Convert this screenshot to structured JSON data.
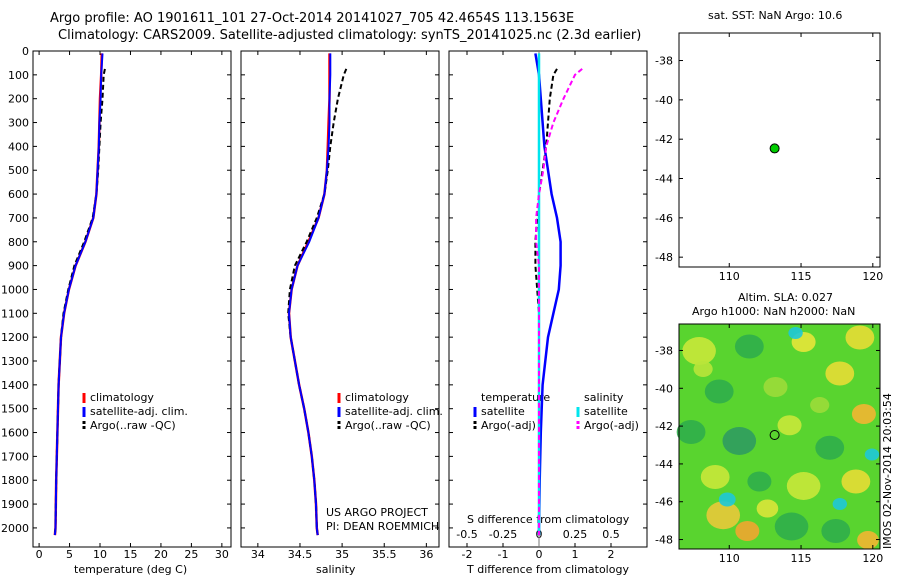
{
  "title": {
    "line1": "Argo profile: AO 1901611_101 27-Oct-2014 20141027_705 42.4654S 113.1563E",
    "line2": "Climatology: CARS2009. Satellite-adjusted climatology: synTS_20141025.nc (2.3d earlier)"
  },
  "colors": {
    "climatology": "#ff0000",
    "satellite": "#0000ff",
    "argo": "#000000",
    "satellite_s": "#00e5ee",
    "argo_s": "#ff00ff",
    "marker": "#00cc00"
  },
  "chart_data": [
    {
      "id": "temperature",
      "type": "line",
      "xlabel": "temperature (deg C)",
      "ylabel": "",
      "xlim": [
        -1,
        31.5
      ],
      "ylim": [
        2080,
        0
      ],
      "xticks": [
        0,
        5,
        10,
        15,
        20,
        25,
        30
      ],
      "yticks": [
        0,
        100,
        200,
        300,
        400,
        500,
        600,
        700,
        800,
        900,
        1000,
        1100,
        1200,
        1300,
        1400,
        1500,
        1600,
        1700,
        1800,
        1900,
        2000
      ],
      "legend": [
        "climatology",
        "satellite-adj. clim.",
        "Argo(..raw -QC)"
      ],
      "series": [
        {
          "name": "climatology",
          "depth": [
            10,
            100,
            200,
            300,
            400,
            500,
            600,
            700,
            800,
            900,
            1000,
            1100,
            1200,
            1300,
            1400,
            1600,
            1800,
            2000,
            2030
          ],
          "values": [
            10.3,
            10.2,
            10.0,
            9.9,
            9.8,
            9.6,
            9.4,
            8.9,
            7.6,
            6.0,
            4.9,
            4.1,
            3.6,
            3.4,
            3.2,
            3.0,
            2.8,
            2.7,
            2.6
          ]
        },
        {
          "name": "satellite-adj. clim.",
          "depth": [
            10,
            100,
            200,
            300,
            400,
            500,
            600,
            700,
            800,
            900,
            1000,
            1100,
            1200,
            1300,
            1400,
            1600,
            1800,
            2000,
            2030
          ],
          "values": [
            10.4,
            10.2,
            10.1,
            9.9,
            9.8,
            9.6,
            9.4,
            8.9,
            7.6,
            6.0,
            4.9,
            4.1,
            3.6,
            3.4,
            3.2,
            3.0,
            2.8,
            2.7,
            2.6
          ]
        },
        {
          "name": "Argo(..raw -QC)",
          "depth": [
            75,
            100,
            200,
            300,
            400,
            500,
            600,
            700,
            800,
            900,
            1000,
            1100,
            1200,
            1300,
            1400,
            1600,
            1800,
            2000,
            2030
          ],
          "values": [
            10.8,
            10.6,
            10.4,
            10.1,
            9.9,
            9.7,
            9.4,
            8.8,
            7.4,
            5.8,
            4.8,
            4.0,
            3.6,
            3.4,
            3.2,
            3.0,
            2.8,
            2.7,
            2.6
          ]
        }
      ]
    },
    {
      "id": "salinity",
      "type": "line",
      "xlabel": "salinity",
      "ylabel": "",
      "xlim": [
        33.8,
        36.15
      ],
      "ylim": [
        2080,
        0
      ],
      "xticks": [
        34,
        34.5,
        35,
        35.5,
        36
      ],
      "legend": [
        "climatology",
        "satellite-adj. clim.",
        "Argo(..raw -QC)"
      ],
      "annotations": [
        "US ARGO PROJECT",
        "PI: DEAN ROEMMICH"
      ],
      "series": [
        {
          "name": "climatology",
          "depth": [
            10,
            100,
            200,
            300,
            400,
            500,
            600,
            700,
            800,
            900,
            1000,
            1100,
            1200,
            1300,
            1400,
            1500,
            1600,
            1700,
            1800,
            1900,
            2000,
            2030
          ],
          "values": [
            34.85,
            34.85,
            34.85,
            34.84,
            34.83,
            34.82,
            34.79,
            34.72,
            34.6,
            34.47,
            34.4,
            34.37,
            34.39,
            34.44,
            34.49,
            34.55,
            34.6,
            34.64,
            34.67,
            34.69,
            34.7,
            34.71
          ]
        },
        {
          "name": "satellite-adj. clim.",
          "depth": [
            10,
            100,
            200,
            300,
            400,
            500,
            600,
            700,
            800,
            900,
            1000,
            1100,
            1200,
            1300,
            1400,
            1500,
            1600,
            1700,
            1800,
            1900,
            2000,
            2030
          ],
          "values": [
            34.86,
            34.86,
            34.85,
            34.85,
            34.84,
            34.82,
            34.79,
            34.72,
            34.61,
            34.47,
            34.4,
            34.37,
            34.39,
            34.44,
            34.49,
            34.55,
            34.6,
            34.64,
            34.67,
            34.69,
            34.7,
            34.71
          ]
        },
        {
          "name": "Argo(..raw -QC)",
          "depth": [
            75,
            100,
            200,
            300,
            400,
            500,
            600,
            700,
            800,
            900,
            1000,
            1100,
            1200,
            1300,
            1400,
            1500,
            1600,
            1700,
            1800,
            1900,
            2000,
            2030
          ],
          "values": [
            35.05,
            35.02,
            34.95,
            34.9,
            34.86,
            34.83,
            34.79,
            34.7,
            34.58,
            34.44,
            34.38,
            34.36,
            34.39,
            34.44,
            34.49,
            34.55,
            34.6,
            34.64,
            34.67,
            34.69,
            34.7,
            34.71
          ]
        }
      ]
    },
    {
      "id": "difference",
      "type": "line",
      "xlabel": "T difference from climatology",
      "xlabel2": "S difference from climatology",
      "ylabel": "",
      "xlim": [
        -2.5,
        3.0
      ],
      "ylim": [
        2080,
        0
      ],
      "xticks_T": [
        -2,
        -1,
        0,
        1,
        2
      ],
      "xticks_S": [
        -0.5,
        -0.25,
        0,
        0.25,
        0.5
      ],
      "legend": {
        "temperature_header": "temperature",
        "salinity_header": "salinity",
        "items": [
          "satellite",
          "Argo(-adj)",
          "satellite",
          "Argo(-adj)"
        ]
      },
      "series": [
        {
          "name": "satellite",
          "depth": [
            10,
            100,
            200,
            300,
            400,
            500,
            600,
            700,
            800,
            900,
            1000,
            1100,
            1200,
            1400,
            1600,
            1800,
            2000,
            2030
          ],
          "values": [
            -0.1,
            0.0,
            0.05,
            0.1,
            0.15,
            0.25,
            0.35,
            0.5,
            0.6,
            0.6,
            0.55,
            0.4,
            0.25,
            0.1,
            0.05,
            0.02,
            0.0,
            0.0
          ]
        },
        {
          "name": "Argo(-adj)",
          "depth": [
            75,
            100,
            200,
            300,
            400,
            500,
            600,
            700,
            800,
            900,
            1000,
            1100,
            1200,
            1400,
            1600,
            1800,
            2000,
            2030
          ],
          "values": [
            0.5,
            0.4,
            0.3,
            0.25,
            0.2,
            0.1,
            0.0,
            -0.05,
            -0.1,
            -0.1,
            -0.05,
            0.0,
            0.0,
            0.0,
            0.0,
            0.0,
            0.0,
            0.0
          ]
        },
        {
          "name": "satellite (S)",
          "depth": [
            10,
            100,
            200,
            300,
            400,
            600,
            800,
            1000,
            1200,
            1400,
            1600,
            1800,
            2000,
            2030
          ],
          "values": [
            0.0,
            0.0,
            0.0,
            0.0,
            0.0,
            0.0,
            0.0,
            0.0,
            0.0,
            0.0,
            0.0,
            0.0,
            0.0,
            0.0
          ]
        },
        {
          "name": "Argo(-adj) (S)",
          "depth": [
            75,
            100,
            200,
            300,
            400,
            500,
            600,
            700,
            800,
            900,
            1000,
            1100,
            1200,
            1400,
            1600,
            1800,
            2000,
            2030
          ],
          "values": [
            0.3,
            0.25,
            0.17,
            0.1,
            0.05,
            0.03,
            0.0,
            -0.02,
            -0.02,
            0.0,
            0.0,
            0.0,
            0.0,
            0.0,
            0.0,
            0.0,
            0.0,
            0.0
          ]
        }
      ]
    },
    {
      "id": "map-sst",
      "type": "scatter",
      "title": "sat. SST: NaN Argo: 10.6",
      "xlim": [
        106.5,
        120.5
      ],
      "ylim": [
        -48.5,
        -36.6
      ],
      "xticks": [
        110,
        115,
        120
      ],
      "yticks": [
        -38,
        -40,
        -42,
        -44,
        -46,
        -48
      ],
      "point": {
        "lon": 113.16,
        "lat": -42.47
      }
    },
    {
      "id": "map-sla",
      "type": "heatmap",
      "title_line1": "Altim. SLA: 0.027",
      "title_line2": "Argo h1000: NaN h2000: NaN",
      "xlim": [
        106.5,
        120.5
      ],
      "ylim": [
        -48.5,
        -36.6
      ],
      "xticks": [
        110,
        115,
        120
      ],
      "yticks": [
        -38,
        -40,
        -42,
        -44,
        -46,
        -48
      ],
      "point": {
        "lon": 113.16,
        "lat": -42.47
      }
    }
  ],
  "credit": "IMOS 02-Nov-2014 20:03:54"
}
